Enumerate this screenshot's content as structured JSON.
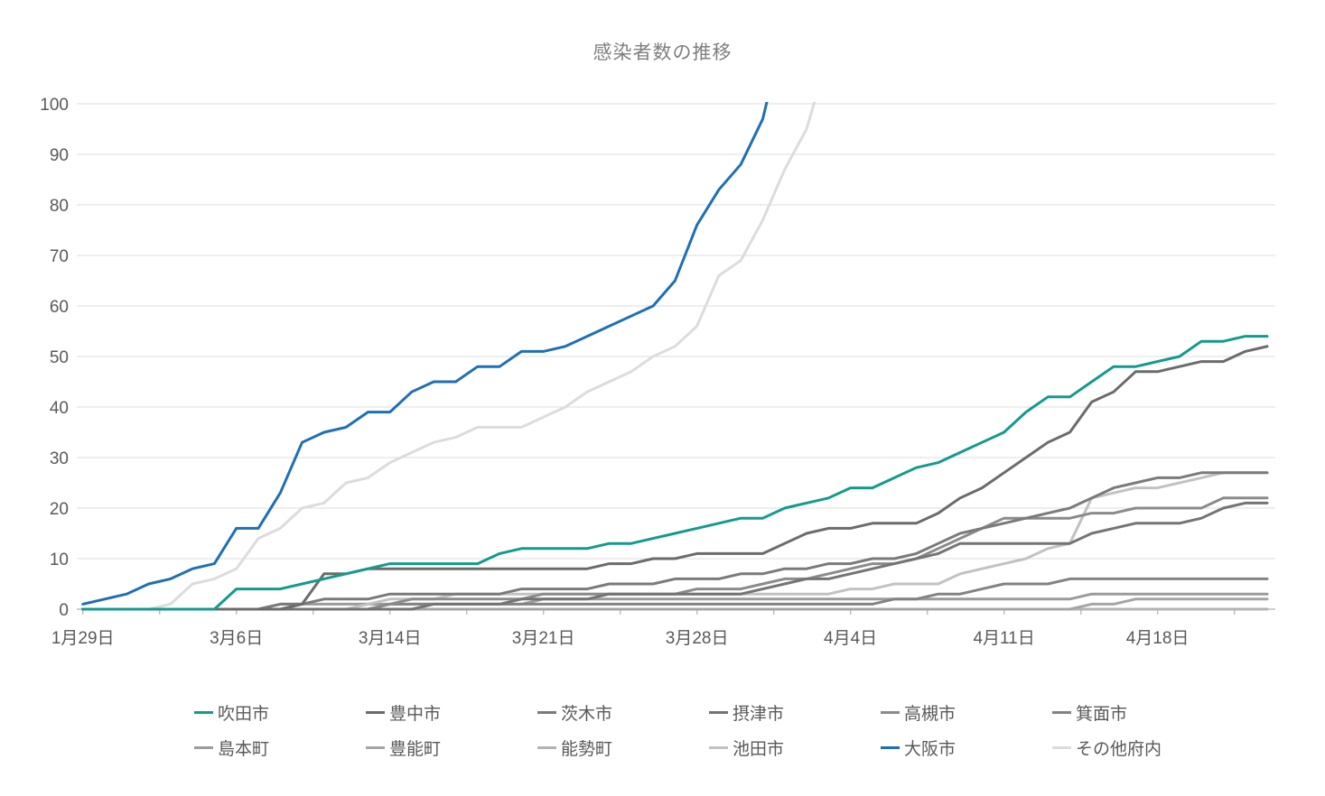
{
  "title": "感染者数の推移",
  "chart_data": {
    "type": "line",
    "title": "感染者数の推移",
    "grid": true,
    "legend_position": "bottom",
    "x_axis": {
      "tick_labels": [
        "1月29日",
        "3月6日",
        "3月14日",
        "3月21日",
        "3月28日",
        "4月4日",
        "4月11日",
        "4月18日"
      ],
      "tick_label_indices": [
        0,
        7,
        14,
        21,
        28,
        35,
        42,
        49
      ],
      "num_points": 55
    },
    "y_axis": {
      "min": 0,
      "max": 100,
      "step": 10,
      "tick_labels": [
        "0",
        "10",
        "20",
        "30",
        "40",
        "50",
        "60",
        "70",
        "80",
        "90",
        "100"
      ]
    },
    "note": "大阪市 and その他府内 exceed 100 and are clipped at the plot top; null = beyond plotted range",
    "series": [
      {
        "id": "suita",
        "name": "吹田市",
        "color": "#149a8d",
        "values": [
          0,
          0,
          0,
          0,
          0,
          0,
          0,
          4,
          4,
          4,
          5,
          6,
          7,
          8,
          9,
          9,
          9,
          9,
          9,
          11,
          12,
          12,
          12,
          12,
          13,
          13,
          14,
          15,
          16,
          17,
          18,
          18,
          20,
          21,
          22,
          24,
          24,
          26,
          28,
          29,
          31,
          33,
          35,
          39,
          42,
          42,
          45,
          48,
          48,
          49,
          50,
          53,
          53,
          54,
          54
        ]
      },
      {
        "id": "toyonaka",
        "name": "豊中市",
        "color": "#6b6b6b",
        "values": [
          0,
          0,
          0,
          0,
          0,
          0,
          0,
          0,
          0,
          0,
          1,
          7,
          7,
          8,
          8,
          8,
          8,
          8,
          8,
          8,
          8,
          8,
          8,
          8,
          9,
          9,
          10,
          10,
          11,
          11,
          11,
          11,
          13,
          15,
          16,
          16,
          17,
          17,
          17,
          19,
          22,
          24,
          27,
          30,
          33,
          35,
          41,
          43,
          47,
          47,
          48,
          49,
          49,
          51,
          52
        ]
      },
      {
        "id": "ibaraki",
        "name": "茨木市",
        "color": "#7a7a7a",
        "values": [
          0,
          0,
          0,
          0,
          0,
          0,
          0,
          0,
          0,
          1,
          1,
          2,
          2,
          2,
          3,
          3,
          3,
          3,
          3,
          3,
          4,
          4,
          4,
          4,
          5,
          5,
          5,
          6,
          6,
          6,
          7,
          7,
          8,
          8,
          9,
          9,
          10,
          10,
          11,
          13,
          15,
          16,
          17,
          18,
          19,
          20,
          22,
          24,
          25,
          26,
          26,
          27,
          27,
          27,
          27
        ]
      },
      {
        "id": "settsu",
        "name": "摂津市",
        "color": "#747474",
        "values": [
          0,
          0,
          0,
          0,
          0,
          0,
          0,
          0,
          0,
          0,
          0,
          0,
          0,
          0,
          0,
          0,
          1,
          1,
          1,
          1,
          2,
          2,
          2,
          2,
          3,
          3,
          3,
          3,
          3,
          3,
          3,
          4,
          5,
          6,
          6,
          7,
          8,
          9,
          10,
          11,
          13,
          13,
          13,
          13,
          13,
          13,
          15,
          16,
          17,
          17,
          17,
          18,
          20,
          21,
          21
        ]
      },
      {
        "id": "takatsuki",
        "name": "高槻市",
        "color": "#8b8b8b",
        "values": [
          0,
          0,
          0,
          0,
          0,
          0,
          0,
          0,
          0,
          0,
          0,
          0,
          0,
          0,
          1,
          2,
          2,
          2,
          2,
          2,
          2,
          3,
          3,
          3,
          3,
          3,
          3,
          3,
          4,
          4,
          4,
          5,
          6,
          6,
          7,
          8,
          9,
          9,
          10,
          12,
          14,
          16,
          18,
          18,
          18,
          18,
          19,
          19,
          20,
          20,
          20,
          20,
          22,
          22,
          22
        ]
      },
      {
        "id": "minoh",
        "name": "箕面市",
        "color": "#838383",
        "values": [
          0,
          0,
          0,
          0,
          0,
          0,
          0,
          0,
          0,
          0,
          0,
          0,
          0,
          0,
          1,
          1,
          1,
          1,
          1,
          1,
          1,
          1,
          1,
          1,
          1,
          1,
          1,
          1,
          1,
          1,
          1,
          1,
          1,
          1,
          1,
          1,
          1,
          2,
          2,
          3,
          3,
          4,
          5,
          5,
          5,
          6,
          6,
          6,
          6,
          6,
          6,
          6,
          6,
          6,
          6
        ]
      },
      {
        "id": "shimamoto",
        "name": "島本町",
        "color": "#9b9b9b",
        "values": [
          0,
          0,
          0,
          0,
          0,
          0,
          0,
          0,
          0,
          1,
          1,
          1,
          1,
          1,
          1,
          1,
          1,
          1,
          1,
          1,
          1,
          2,
          2,
          2,
          2,
          2,
          2,
          2,
          2,
          2,
          2,
          2,
          2,
          2,
          2,
          2,
          2,
          2,
          2,
          2,
          2,
          2,
          2,
          2,
          2,
          2,
          3,
          3,
          3,
          3,
          3,
          3,
          3,
          3,
          3
        ]
      },
      {
        "id": "toyono",
        "name": "豊能町",
        "color": "#a5a5a5",
        "values": [
          0,
          0,
          0,
          0,
          0,
          0,
          0,
          0,
          0,
          0,
          0,
          0,
          0,
          0,
          0,
          0,
          0,
          0,
          0,
          0,
          0,
          0,
          0,
          0,
          0,
          0,
          0,
          0,
          0,
          0,
          0,
          0,
          0,
          0,
          0,
          0,
          0,
          0,
          0,
          0,
          0,
          0,
          0,
          0,
          0,
          0,
          1,
          1,
          2,
          2,
          2,
          2,
          2,
          2,
          2
        ]
      },
      {
        "id": "nose",
        "name": "能勢町",
        "color": "#b3b3b3",
        "values": [
          0,
          0,
          0,
          0,
          0,
          0,
          0,
          0,
          0,
          0,
          0,
          0,
          0,
          0,
          0,
          0,
          0,
          0,
          0,
          0,
          0,
          0,
          0,
          0,
          0,
          0,
          0,
          0,
          0,
          0,
          0,
          0,
          0,
          0,
          0,
          0,
          0,
          0,
          0,
          0,
          0,
          0,
          0,
          0,
          0,
          0,
          0,
          0,
          0,
          0,
          0,
          0,
          0,
          0,
          0
        ]
      },
      {
        "id": "ikeda",
        "name": "池田市",
        "color": "#c2c2c2",
        "values": [
          0,
          0,
          0,
          0,
          0,
          0,
          0,
          0,
          0,
          0,
          0,
          0,
          0,
          1,
          2,
          2,
          2,
          3,
          3,
          3,
          3,
          3,
          3,
          3,
          3,
          3,
          3,
          3,
          3,
          3,
          3,
          3,
          3,
          3,
          3,
          4,
          4,
          5,
          5,
          5,
          7,
          8,
          9,
          10,
          12,
          13,
          22,
          23,
          24,
          24,
          25,
          26,
          27,
          27,
          27
        ]
      },
      {
        "id": "osaka",
        "name": "大阪市",
        "color": "#1f6fb5",
        "values": [
          1,
          2,
          3,
          5,
          6,
          8,
          9,
          16,
          16,
          23,
          33,
          35,
          36,
          39,
          39,
          43,
          45,
          45,
          48,
          48,
          51,
          51,
          52,
          54,
          56,
          58,
          60,
          65,
          76,
          83,
          88,
          97,
          115,
          null,
          null,
          null,
          null,
          null,
          null,
          null,
          null,
          null,
          null,
          null,
          null,
          null,
          null,
          null,
          null,
          null,
          null,
          null,
          null,
          null,
          null
        ]
      },
      {
        "id": "sonota",
        "name": "その他府内",
        "color": "#dcdcdc",
        "values": [
          0,
          0,
          0,
          0,
          1,
          5,
          6,
          8,
          14,
          16,
          20,
          21,
          25,
          26,
          29,
          31,
          33,
          34,
          36,
          36,
          36,
          38,
          40,
          43,
          45,
          47,
          50,
          52,
          56,
          66,
          69,
          77,
          87,
          95,
          110,
          null,
          null,
          null,
          null,
          null,
          null,
          null,
          null,
          null,
          null,
          null,
          null,
          null,
          null,
          null,
          null,
          null,
          null,
          null,
          null
        ]
      }
    ],
    "z_order": [
      "nose",
      "toyono",
      "shimamoto",
      "ikeda",
      "sonota",
      "minoh",
      "takatsuki",
      "settsu",
      "ibaraki",
      "toyonaka",
      "osaka",
      "suita"
    ]
  },
  "legend": {
    "rows": 2,
    "items_per_row": 6
  },
  "style": {
    "grid_color": "#dcdcdc",
    "axis_color": "#bfbfbf",
    "label_color": "#595959",
    "title_color": "#7f7f7f"
  }
}
